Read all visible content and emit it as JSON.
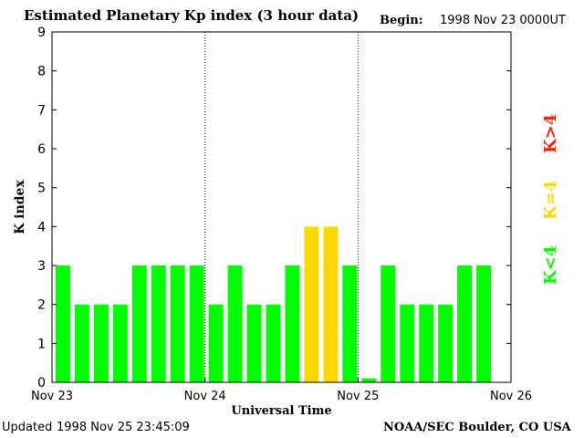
{
  "header": {
    "title": "Estimated Planetary Kp index (3 hour data)",
    "begin_label": "Begin:",
    "begin_value": "1998 Nov 23 0000UT"
  },
  "footer": {
    "updated_label": "Updated",
    "updated_value": "1998 Nov 25 23:45:09",
    "credit": "NOAA/SEC Boulder, CO USA"
  },
  "legend": {
    "low": "K<4",
    "equal": "K=4",
    "high": "K>4"
  },
  "colors": {
    "low": "#00ff00",
    "equal": "#ffd700",
    "high": "#ff2000"
  },
  "chart_data": {
    "type": "bar",
    "title": "Estimated Planetary Kp index (3 hour data)",
    "xlabel": "Universal Time",
    "ylabel": "K index",
    "ylim": [
      0,
      9
    ],
    "yticks": [
      "0",
      "1",
      "2",
      "3",
      "4",
      "5",
      "6",
      "7",
      "8",
      "9"
    ],
    "xticks": [
      "Nov 23",
      "Nov 24",
      "Nov 25",
      "Nov 26"
    ],
    "interval_hours": 3,
    "values": [
      3,
      2,
      2,
      2,
      3,
      3,
      3,
      3,
      2,
      3,
      2,
      2,
      3,
      4,
      4,
      3,
      0.1,
      3,
      2,
      2,
      2,
      3,
      3
    ]
  }
}
